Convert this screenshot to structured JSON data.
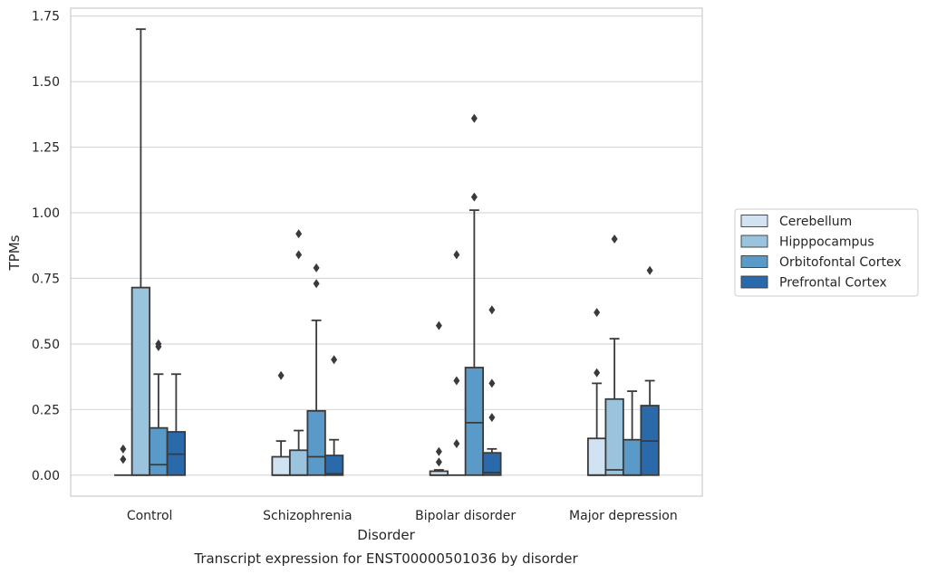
{
  "chart_data": {
    "type": "boxplot",
    "title": "Transcript expression for ENST00000501036 by disorder",
    "xlabel": "Disorder",
    "ylabel": "TPMs",
    "ylim": [
      -0.08,
      1.78
    ],
    "yticks": [
      "0.00",
      "0.25",
      "0.50",
      "0.75",
      "1.00",
      "1.25",
      "1.50",
      "1.75"
    ],
    "categories": [
      "Control",
      "Schizophrenia",
      "Bipolar disorder",
      "Major depression"
    ],
    "grid": true,
    "legend_position": "right",
    "series": [
      {
        "name": "Cerebellum",
        "color": "#d1e2f2",
        "boxes": [
          {
            "q1": 0.0,
            "median": 0.0,
            "q3": 0.0,
            "whislo": 0.0,
            "whishi": 0.0,
            "fliers": [
              0.06,
              0.1
            ]
          },
          {
            "q1": 0.0,
            "median": 0.0,
            "q3": 0.07,
            "whislo": 0.0,
            "whishi": 0.13,
            "fliers": [
              0.38
            ]
          },
          {
            "q1": 0.0,
            "median": 0.0,
            "q3": 0.015,
            "whislo": 0.0,
            "whishi": 0.02,
            "fliers": [
              0.05,
              0.09,
              0.57
            ]
          },
          {
            "q1": 0.0,
            "median": 0.0,
            "q3": 0.14,
            "whislo": 0.0,
            "whishi": 0.35,
            "fliers": [
              0.39,
              0.62
            ]
          }
        ]
      },
      {
        "name": "Hipppocampus",
        "color": "#9ac3de",
        "boxes": [
          {
            "q1": 0.0,
            "median": 0.0,
            "q3": 0.715,
            "whislo": 0.0,
            "whishi": 1.7,
            "fliers": []
          },
          {
            "q1": 0.0,
            "median": 0.0,
            "q3": 0.095,
            "whislo": 0.0,
            "whishi": 0.17,
            "fliers": [
              0.84,
              0.92
            ]
          },
          {
            "q1": 0.0,
            "median": 0.0,
            "q3": 0.0,
            "whislo": 0.0,
            "whishi": 0.0,
            "fliers": [
              0.12,
              0.36,
              0.84
            ]
          },
          {
            "q1": 0.0,
            "median": 0.02,
            "q3": 0.29,
            "whislo": 0.0,
            "whishi": 0.52,
            "fliers": [
              0.9
            ]
          }
        ]
      },
      {
        "name": "Orbitofontal Cortex",
        "color": "#5a9ac9",
        "boxes": [
          {
            "q1": 0.0,
            "median": 0.04,
            "q3": 0.18,
            "whislo": 0.0,
            "whishi": 0.385,
            "fliers": [
              0.49,
              0.5
            ]
          },
          {
            "q1": 0.0,
            "median": 0.07,
            "q3": 0.245,
            "whislo": 0.0,
            "whishi": 0.59,
            "fliers": [
              0.73,
              0.79
            ]
          },
          {
            "q1": 0.0,
            "median": 0.2,
            "q3": 0.41,
            "whislo": 0.0,
            "whishi": 1.01,
            "fliers": [
              1.06,
              1.36
            ]
          },
          {
            "q1": 0.0,
            "median": 0.0,
            "q3": 0.135,
            "whislo": 0.0,
            "whishi": 0.32,
            "fliers": []
          }
        ]
      },
      {
        "name": "Prefrontal Cortex",
        "color": "#2a6aaa",
        "boxes": [
          {
            "q1": 0.0,
            "median": 0.08,
            "q3": 0.165,
            "whislo": 0.0,
            "whishi": 0.385,
            "fliers": []
          },
          {
            "q1": 0.0,
            "median": 0.005,
            "q3": 0.075,
            "whislo": 0.0,
            "whishi": 0.135,
            "fliers": [
              0.44
            ]
          },
          {
            "q1": 0.0,
            "median": 0.01,
            "q3": 0.085,
            "whislo": 0.0,
            "whishi": 0.1,
            "fliers": [
              0.22,
              0.35,
              0.63
            ]
          },
          {
            "q1": 0.0,
            "median": 0.13,
            "q3": 0.265,
            "whislo": 0.0,
            "whishi": 0.36,
            "fliers": [
              0.78
            ]
          }
        ]
      }
    ]
  }
}
